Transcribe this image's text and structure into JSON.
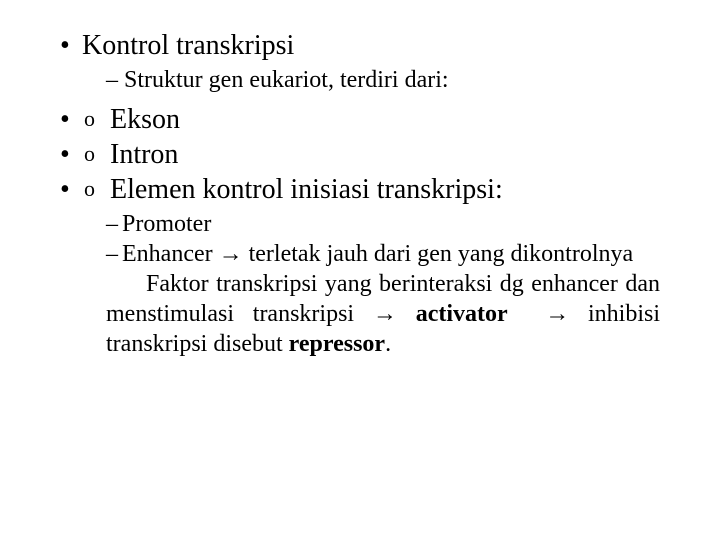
{
  "colors": {
    "background": "#ffffff",
    "text": "#000000"
  },
  "fonts": {
    "family": "Times New Roman",
    "l1_size_pt": 28,
    "l2_size_pt": 24
  },
  "arrow": "→",
  "l1_a": "Kontrol transkripsi",
  "l2_a": "Struktur gen eukariot, terdiri dari:",
  "o1": "Ekson",
  "o2": "Intron",
  "o3": "Elemen kontrol inisiasi transkripsi:",
  "p1": "Promoter",
  "p2a": "Enhancer ",
  "p2b": " terletak jauh dari gen yang dikontrolnya",
  "p3a": "Faktor transkripsi yang berinteraksi dg enhancer dan menstimulasi transkripsi ",
  "p3b_bold": "activator",
  "p3c": " inhibisi transkripsi disebut ",
  "p3d_bold": "repressor",
  "p3e": "."
}
